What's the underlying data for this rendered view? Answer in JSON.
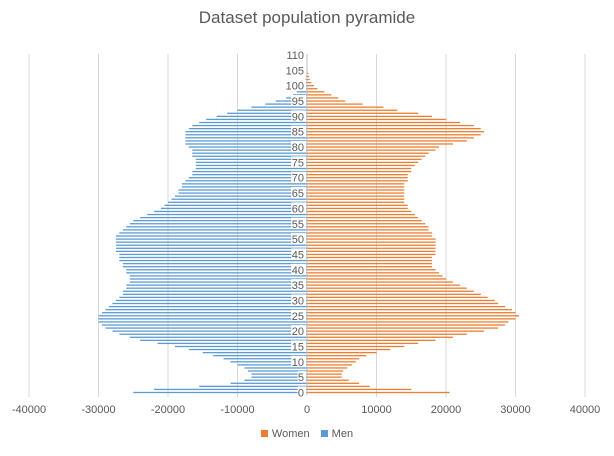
{
  "chart_data": {
    "type": "bar",
    "orientation": "horizontal",
    "title": "Dataset population pyramide",
    "xlabel": "",
    "ylabel": "",
    "xlim": [
      -40000,
      40000
    ],
    "x_ticks": [
      -40000,
      -30000,
      -20000,
      -10000,
      0,
      10000,
      20000,
      30000,
      40000
    ],
    "y_tick_labels": [
      "0",
      "5",
      "10",
      "15",
      "20",
      "25",
      "30",
      "35",
      "40",
      "45",
      "50",
      "55",
      "60",
      "65",
      "70",
      "75",
      "80",
      "85",
      "90",
      "95",
      "100",
      "105",
      "110"
    ],
    "grid": true,
    "legend_position": "bottom",
    "ages": [
      0,
      1,
      2,
      3,
      4,
      5,
      6,
      7,
      8,
      9,
      10,
      11,
      12,
      13,
      14,
      15,
      16,
      17,
      18,
      19,
      20,
      21,
      22,
      23,
      24,
      25,
      26,
      27,
      28,
      29,
      30,
      31,
      32,
      33,
      34,
      35,
      36,
      37,
      38,
      39,
      40,
      41,
      42,
      43,
      44,
      45,
      46,
      47,
      48,
      49,
      50,
      51,
      52,
      53,
      54,
      55,
      56,
      57,
      58,
      59,
      60,
      61,
      62,
      63,
      64,
      65,
      66,
      67,
      68,
      69,
      70,
      71,
      72,
      73,
      74,
      75,
      76,
      77,
      78,
      79,
      80,
      81,
      82,
      83,
      84,
      85,
      86,
      87,
      88,
      89,
      90,
      91,
      92,
      93,
      94,
      95,
      96,
      97,
      98,
      99,
      100,
      101,
      102,
      103,
      104,
      105,
      106,
      107,
      108,
      109,
      110
    ],
    "series": [
      {
        "name": "Women",
        "color": "#ED7D31",
        "values": [
          20500,
          15000,
          9000,
          7500,
          6000,
          5000,
          5000,
          5200,
          5800,
          6500,
          7000,
          7500,
          8500,
          10000,
          12000,
          14000,
          16000,
          18500,
          21000,
          23000,
          25500,
          27500,
          28500,
          29000,
          30000,
          30500,
          30000,
          29500,
          28500,
          27500,
          27000,
          26000,
          25000,
          24000,
          23000,
          22000,
          21000,
          20000,
          19500,
          19000,
          18500,
          18000,
          18000,
          18000,
          18000,
          18500,
          18500,
          18500,
          18500,
          18500,
          18500,
          18000,
          18000,
          17500,
          17500,
          17000,
          16500,
          16000,
          15500,
          15000,
          14500,
          14500,
          14000,
          14000,
          14000,
          14000,
          14000,
          14000,
          14000,
          14500,
          14500,
          14500,
          15000,
          15000,
          15500,
          16000,
          16500,
          17000,
          17500,
          18500,
          19000,
          21000,
          23000,
          24000,
          25000,
          25500,
          25000,
          24000,
          22000,
          20000,
          18000,
          16000,
          13000,
          11000,
          8000,
          5500,
          4500,
          3500,
          2500,
          1500,
          1000,
          600,
          400,
          300,
          200,
          100,
          50,
          30,
          20,
          10,
          5
        ]
      },
      {
        "name": "Men",
        "color": "#5B9BD5",
        "values": [
          25000,
          22000,
          15500,
          11000,
          9000,
          8000,
          8000,
          8500,
          9000,
          10000,
          11000,
          12000,
          13500,
          15000,
          17000,
          19000,
          21500,
          24000,
          25500,
          27000,
          28000,
          29000,
          29500,
          30000,
          30000,
          30000,
          29500,
          29000,
          28500,
          28000,
          27500,
          27000,
          26500,
          26500,
          26000,
          26000,
          25500,
          25500,
          25500,
          26000,
          26000,
          26500,
          26500,
          27000,
          27000,
          27000,
          27500,
          27500,
          27500,
          27500,
          27500,
          27500,
          27000,
          26500,
          26000,
          25500,
          25000,
          24000,
          23000,
          22000,
          21000,
          20500,
          20000,
          19500,
          19000,
          18500,
          18500,
          18000,
          18000,
          17500,
          17000,
          16500,
          16500,
          16000,
          16000,
          16000,
          16000,
          16500,
          16500,
          16500,
          17000,
          17500,
          17500,
          17500,
          17500,
          17500,
          17000,
          16500,
          15500,
          14500,
          13000,
          11500,
          10000,
          8000,
          6000,
          4500,
          3000,
          2000,
          1500,
          1000,
          600,
          400,
          250,
          150,
          100,
          60,
          40,
          20,
          10,
          5,
          2
        ]
      }
    ]
  }
}
